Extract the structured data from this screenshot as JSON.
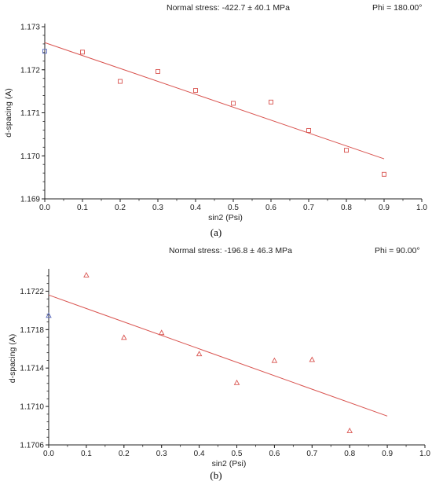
{
  "chart_data": [
    {
      "type": "scatter",
      "header_left": "Normal stress: -422.7 ± 40.1 MPa",
      "header_right": "Phi = 180.00°",
      "xlabel": "sin2 (Psi)",
      "ylabel": "d-spacing (A)",
      "caption": "(a)",
      "xlim": [
        0.0,
        1.0
      ],
      "ylim": [
        1.169,
        1.173
      ],
      "xticks": [
        "0.0",
        "0.1",
        "0.2",
        "0.3",
        "0.4",
        "0.5",
        "0.6",
        "0.7",
        "0.8",
        "0.9",
        "1.0"
      ],
      "yticks": [
        "1.169",
        "1.170",
        "1.171",
        "1.172",
        "1.173"
      ],
      "grid": false,
      "marker": "square",
      "series": [
        {
          "x": [
            0.0,
            0.1,
            0.2,
            0.3,
            0.4,
            0.5,
            0.6,
            0.7,
            0.8,
            0.9
          ],
          "y": [
            1.17243,
            1.17241,
            1.17173,
            1.17196,
            1.17152,
            1.17122,
            1.17125,
            1.17059,
            1.17013,
            1.16957
          ]
        }
      ],
      "fit_line": {
        "x": [
          0.0,
          0.9
        ],
        "y": [
          1.17263,
          1.16993
        ]
      },
      "colors": {
        "points": "#d9534f",
        "fit": "#d9534f",
        "origin_point": "#5b6bbf",
        "axis": "#222222"
      }
    },
    {
      "type": "scatter",
      "header_left": "Normal stress: -196.8 ± 46.3 MPa",
      "header_right": "Phi = 90.00°",
      "xlabel": "sin2 (Psi)",
      "ylabel": "d-spacing (A)",
      "caption": "(b)",
      "xlim": [
        0.0,
        1.0
      ],
      "ylim": [
        1.1706,
        1.1724
      ],
      "xticks": [
        "0.0",
        "0.1",
        "0.2",
        "0.3",
        "0.4",
        "0.5",
        "0.6",
        "0.7",
        "0.8",
        "0.9",
        "1.0"
      ],
      "yticks": [
        "1.1706",
        "1.1710",
        "1.1714",
        "1.1718",
        "1.1722"
      ],
      "grid": false,
      "marker": "triangle",
      "series": [
        {
          "x": [
            0.0,
            0.1,
            0.2,
            0.3,
            0.4,
            0.5,
            0.6,
            0.7,
            0.8
          ],
          "y": [
            1.17195,
            1.17237,
            1.17172,
            1.17177,
            1.17155,
            1.17125,
            1.17148,
            1.17149,
            1.17075
          ]
        }
      ],
      "fit_line": {
        "x": [
          0.0,
          0.9
        ],
        "y": [
          1.17216,
          1.1709
        ]
      },
      "colors": {
        "points": "#d9534f",
        "fit": "#d9534f",
        "origin_point": "#5b6bbf",
        "axis": "#222222"
      }
    }
  ]
}
